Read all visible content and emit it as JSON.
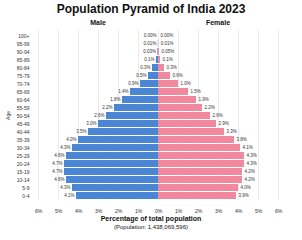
{
  "chart_data": {
    "type": "bar",
    "orientation": "horizontal",
    "title": "Population Pyramid of India 2023",
    "xlabel": "Percentage of total population",
    "ylabel": "Age",
    "caption": "(Population: 1,438,069,596)",
    "categories": [
      "0-4",
      "5-9",
      "10-14",
      "15-19",
      "20-24",
      "25-29",
      "30-34",
      "35-39",
      "40-44",
      "45-49",
      "50-54",
      "55-59",
      "60-64",
      "65-69",
      "70-74",
      "75-79",
      "80-84",
      "85-89",
      "90-94",
      "95-99",
      "100+"
    ],
    "series": [
      {
        "name": "Male",
        "color": "#4a86d4",
        "values": [
          4.1,
          4.3,
          4.6,
          4.7,
          4.7,
          4.6,
          4.3,
          4.0,
          3.5,
          3.0,
          2.6,
          2.2,
          1.8,
          1.4,
          0.9,
          0.5,
          0.3,
          0.1,
          0.03,
          0.01,
          0.0
        ],
        "value_labels": [
          "4.1%",
          "4.3%",
          "4.6%",
          "4.7%",
          "4.7%",
          "4.6%",
          "4.3%",
          "4.0%",
          "3.5%",
          "3.0%",
          "2.6%",
          "2.2%",
          "1.8%",
          "1.4%",
          "0.9%",
          "0.5%",
          "0.3%",
          "0.1%",
          "0.03%",
          "0.01%",
          "0.00%"
        ]
      },
      {
        "name": "Female",
        "color": "#f0899e",
        "values": [
          3.9,
          4.0,
          4.2,
          4.2,
          4.3,
          4.3,
          4.1,
          3.8,
          3.3,
          2.9,
          2.6,
          2.2,
          1.9,
          1.5,
          1.0,
          0.6,
          0.3,
          0.1,
          0.05,
          0.01,
          0.0
        ],
        "value_labels": [
          "3.9%",
          "4.0%",
          "4.2%",
          "4.2%",
          "4.3%",
          "4.3%",
          "4.1%",
          "3.8%",
          "3.3%",
          "2.9%",
          "2.6%",
          "2.2%",
          "1.9%",
          "1.5%",
          "1.0%",
          "0.6%",
          "0.3%",
          "0.1%",
          "0.05%",
          "0.01%",
          "0.00%"
        ]
      }
    ],
    "xlim": [
      0,
      6
    ],
    "xticks": [
      {
        "value": 0,
        "label": "0%"
      },
      {
        "value": 1,
        "label": "1%"
      },
      {
        "value": 2,
        "label": "2%"
      },
      {
        "value": 3,
        "label": "3%"
      },
      {
        "value": 4,
        "label": "4%"
      },
      {
        "value": 5,
        "label": "5%"
      },
      {
        "value": 6,
        "label": "6%"
      }
    ],
    "grid": true,
    "data_labels": true
  }
}
